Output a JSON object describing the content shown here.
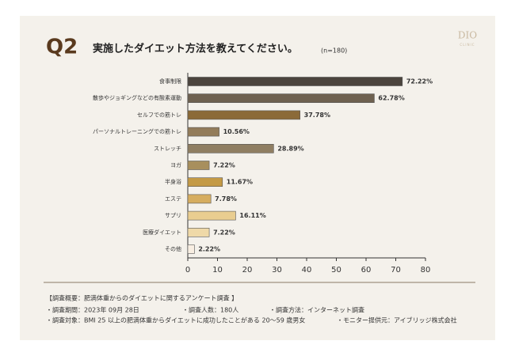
{
  "logo": {
    "name": "DIO",
    "sub": "CLINIC"
  },
  "chart_data": {
    "type": "hbar",
    "question": "Q2",
    "title": "実施したダイエット方法を教えてください。",
    "subtitle": "(n=180)",
    "categories": [
      "食事制限",
      "散歩やジョギングなどの有酸素運動",
      "セルフでの筋トレ",
      "パーソナルトレーニングでの筋トレ",
      "ストレッチ",
      "ヨガ",
      "半身浴",
      "エステ",
      "サプリ",
      "医療ダイエット",
      "その他"
    ],
    "values": [
      72.22,
      62.78,
      37.78,
      10.56,
      28.89,
      7.22,
      11.67,
      7.78,
      16.11,
      7.22,
      2.22
    ],
    "value_labels": [
      "72.22%",
      "62.78%",
      "37.78%",
      "10.56%",
      "28.89%",
      "7.22%",
      "11.67%",
      "7.78%",
      "16.11%",
      "7.22%",
      "2.22%"
    ],
    "colors": [
      "#4b443d",
      "#6e6150",
      "#8b6a38",
      "#937c5a",
      "#8f7e62",
      "#a88f5d",
      "#c49a45",
      "#d6ad5f",
      "#e9cd90",
      "#efd9a8",
      "#f8eee2"
    ],
    "xlim": [
      0,
      80
    ],
    "xticks": [
      0,
      10,
      20,
      30,
      40,
      50,
      60,
      70,
      80
    ],
    "grid": false
  },
  "footer": {
    "heading": "【調査概要：肥満体重からのダイエットに関するアンケート調査 】",
    "lines": [
      [
        "・調査期間：2023年 09月 28日",
        "・調査人数：180人",
        "・調査方法：インターネット調査"
      ],
      [
        "・調査対象：BMI 25 以上の肥満体重からダイエットに成功したことがある 20～59 歳男女",
        "・モニター提供元：アイブリッジ株式会社"
      ]
    ]
  }
}
